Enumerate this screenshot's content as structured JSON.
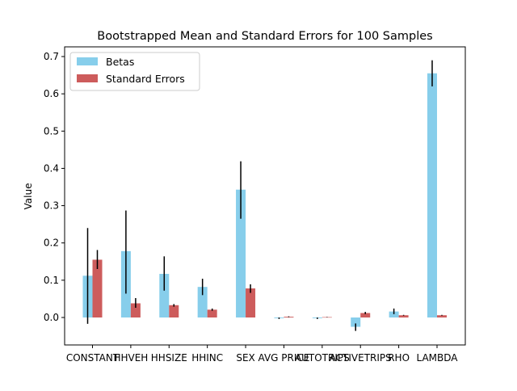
{
  "chart_data": {
    "type": "bar",
    "title": "Bootstrapped Mean and Standard Errors for 100 Samples",
    "xlabel": "",
    "ylabel": "Value",
    "ylim": [
      -0.07,
      0.74
    ],
    "yticks": [
      "0.0",
      "0.1",
      "0.2",
      "0.3",
      "0.4",
      "0.5",
      "0.6",
      "0.7"
    ],
    "ytick_values": [
      0.0,
      0.1,
      0.2,
      0.3,
      0.4,
      0.5,
      0.6,
      0.7
    ],
    "categories": [
      "CONSTANT",
      "HHVEH",
      "HHSIZE",
      "HHINC",
      "SEX",
      "AVG PRICE",
      "AUTOTRIPS",
      "ACTIVETRIPS",
      "RHO",
      "LAMBDA"
    ],
    "grid": false,
    "legend_position": "upper-left",
    "series": [
      {
        "name": "Betas",
        "color": "#87ceeb",
        "values": [
          0.112,
          0.178,
          0.117,
          0.082,
          0.343,
          -0.002,
          -0.002,
          -0.025,
          0.016,
          0.655
        ],
        "err_low": [
          -0.017,
          0.064,
          0.072,
          0.06,
          0.265,
          -0.004,
          -0.004,
          -0.036,
          0.009,
          0.62
        ],
        "err_high": [
          0.24,
          0.287,
          0.164,
          0.104,
          0.419,
          0.0,
          0.0,
          -0.016,
          0.024,
          0.69
        ]
      },
      {
        "name": "Standard Errors",
        "color": "#cd5c5c",
        "values": [
          0.155,
          0.038,
          0.033,
          0.021,
          0.078,
          0.002,
          0.001,
          0.012,
          0.006,
          0.006
        ],
        "err_low": [
          0.13,
          0.026,
          0.029,
          0.018,
          0.066,
          0.001,
          0.0005,
          0.009,
          0.005,
          0.005
        ],
        "err_high": [
          0.181,
          0.052,
          0.036,
          0.024,
          0.089,
          0.003,
          0.0015,
          0.015,
          0.007,
          0.007
        ]
      }
    ]
  }
}
